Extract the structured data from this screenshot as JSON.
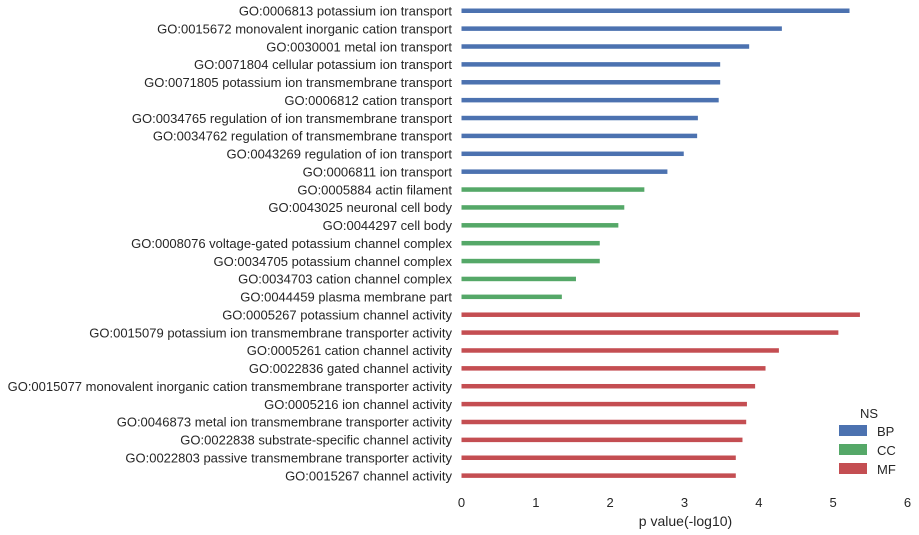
{
  "chart_data": {
    "type": "bar",
    "orientation": "horizontal",
    "xlabel": "p value(-log10)",
    "ylabel": "",
    "xlim": [
      0,
      6
    ],
    "xticks": [
      "0",
      "1",
      "2",
      "3",
      "4",
      "5",
      "6"
    ],
    "grid": false,
    "legend": {
      "title": "NS",
      "placement": "lower-right",
      "entries": [
        {
          "label": "BP",
          "color": "#4c72b0"
        },
        {
          "label": "CC",
          "color": "#55a868"
        },
        {
          "label": "MF",
          "color": "#c44e52"
        }
      ]
    },
    "categories": [
      {
        "label": "GO:0006813 potassium ion transport",
        "value": 5.22,
        "group": "BP"
      },
      {
        "label": "GO:0015672 monovalent inorganic cation transport",
        "value": 4.31,
        "group": "BP"
      },
      {
        "label": "GO:0030001 metal ion transport",
        "value": 3.87,
        "group": "BP"
      },
      {
        "label": "GO:0071804 cellular potassium ion transport",
        "value": 3.48,
        "group": "BP"
      },
      {
        "label": "GO:0071805 potassium ion transmembrane transport",
        "value": 3.48,
        "group": "BP"
      },
      {
        "label": "GO:0006812 cation transport",
        "value": 3.46,
        "group": "BP"
      },
      {
        "label": "GO:0034765 regulation of ion transmembrane transport",
        "value": 3.18,
        "group": "BP"
      },
      {
        "label": "GO:0034762 regulation of transmembrane transport",
        "value": 3.17,
        "group": "BP"
      },
      {
        "label": "GO:0043269 regulation of ion transport",
        "value": 2.99,
        "group": "BP"
      },
      {
        "label": "GO:0006811 ion transport",
        "value": 2.77,
        "group": "BP"
      },
      {
        "label": "GO:0005884 actin filament",
        "value": 2.46,
        "group": "CC"
      },
      {
        "label": "GO:0043025 neuronal cell body",
        "value": 2.19,
        "group": "CC"
      },
      {
        "label": "GO:0044297 cell body",
        "value": 2.11,
        "group": "CC"
      },
      {
        "label": "GO:0008076 voltage-gated potassium channel complex",
        "value": 1.86,
        "group": "CC"
      },
      {
        "label": "GO:0034705 potassium channel complex",
        "value": 1.86,
        "group": "CC"
      },
      {
        "label": "GO:0034703 cation channel complex",
        "value": 1.54,
        "group": "CC"
      },
      {
        "label": "GO:0044459 plasma membrane part",
        "value": 1.35,
        "group": "CC"
      },
      {
        "label": "GO:0005267 potassium channel activity",
        "value": 5.36,
        "group": "MF"
      },
      {
        "label": "GO:0015079 potassium ion transmembrane transporter activity",
        "value": 5.07,
        "group": "MF"
      },
      {
        "label": "GO:0005261 cation channel activity",
        "value": 4.27,
        "group": "MF"
      },
      {
        "label": "GO:0022836 gated channel activity",
        "value": 4.09,
        "group": "MF"
      },
      {
        "label": "GO:0015077 monovalent inorganic cation transmembrane transporter activity",
        "value": 3.95,
        "group": "MF"
      },
      {
        "label": "GO:0005216 ion channel activity",
        "value": 3.84,
        "group": "MF"
      },
      {
        "label": "GO:0046873 metal ion transmembrane transporter activity",
        "value": 3.83,
        "group": "MF"
      },
      {
        "label": "GO:0022838 substrate-specific channel activity",
        "value": 3.78,
        "group": "MF"
      },
      {
        "label": "GO:0022803 passive transmembrane transporter activity",
        "value": 3.69,
        "group": "MF"
      },
      {
        "label": "GO:0015267 channel activity",
        "value": 3.69,
        "group": "MF"
      }
    ]
  }
}
